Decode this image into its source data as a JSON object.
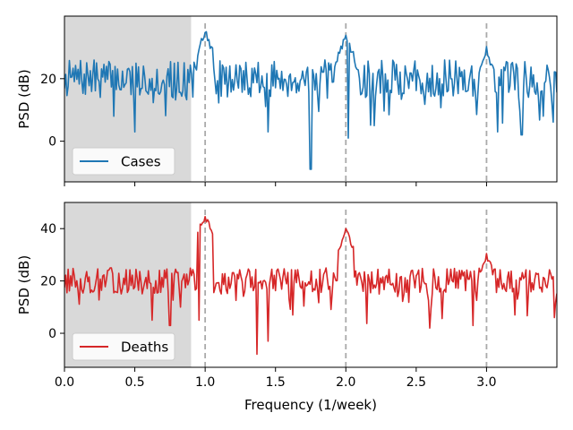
{
  "chart_data": [
    {
      "type": "line",
      "ylabel": "PSD (dB)",
      "xlabel": "",
      "xlim": [
        0.0,
        3.5
      ],
      "ylim": [
        -13,
        40
      ],
      "yticks": [
        0,
        20
      ],
      "xticks": [
        0.0,
        0.5,
        1.0,
        1.5,
        2.0,
        2.5,
        3.0
      ],
      "show_xtick_labels": false,
      "shaded_region": [
        0.0,
        0.9
      ],
      "vlines": [
        1.0,
        2.0,
        3.0
      ],
      "legend_placement": "lower-left",
      "series": [
        {
          "name": "Cases",
          "color": "#1f77b4",
          "base": 20,
          "spread": 6,
          "seed": 7,
          "peaks": [
            [
              1.0,
              35
            ],
            [
              2.0,
              34
            ],
            [
              3.0,
              29
            ]
          ],
          "dips": [
            [
              0.35,
              8
            ],
            [
              0.5,
              3
            ],
            [
              1.45,
              3
            ],
            [
              1.75,
              -9
            ],
            [
              2.02,
              1
            ],
            [
              2.2,
              5
            ],
            [
              3.08,
              3
            ],
            [
              3.25,
              2
            ],
            [
              3.4,
              8
            ]
          ]
        }
      ]
    },
    {
      "type": "line",
      "ylabel": "PSD (dB)",
      "xlabel": "Frequency (1/week)",
      "xlim": [
        0.0,
        3.5
      ],
      "ylim": [
        -13,
        50
      ],
      "yticks": [
        0,
        20,
        40
      ],
      "xticks": [
        0.0,
        0.5,
        1.0,
        1.5,
        2.0,
        2.5,
        3.0
      ],
      "xtick_labels": [
        "0.0",
        "0.5",
        "1.0",
        "1.5",
        "2.0",
        "2.5",
        "3.0"
      ],
      "show_xtick_labels": true,
      "shaded_region": [
        0.0,
        0.9
      ],
      "vlines": [
        1.0,
        2.0,
        3.0
      ],
      "legend_placement": "lower-left",
      "series": [
        {
          "name": "Deaths",
          "color": "#d62728",
          "base": 20,
          "spread": 5,
          "seed": 13,
          "peaks": [
            [
              1.0,
              45
            ],
            [
              2.0,
              39
            ],
            [
              3.0,
              29
            ]
          ],
          "dips": [
            [
              0.62,
              5
            ],
            [
              0.75,
              3
            ],
            [
              0.96,
              5
            ],
            [
              1.37,
              -8
            ],
            [
              1.45,
              -3
            ],
            [
              1.62,
              7
            ],
            [
              2.6,
              2
            ],
            [
              2.9,
              3
            ],
            [
              3.2,
              7
            ],
            [
              3.48,
              6
            ]
          ]
        }
      ]
    }
  ]
}
